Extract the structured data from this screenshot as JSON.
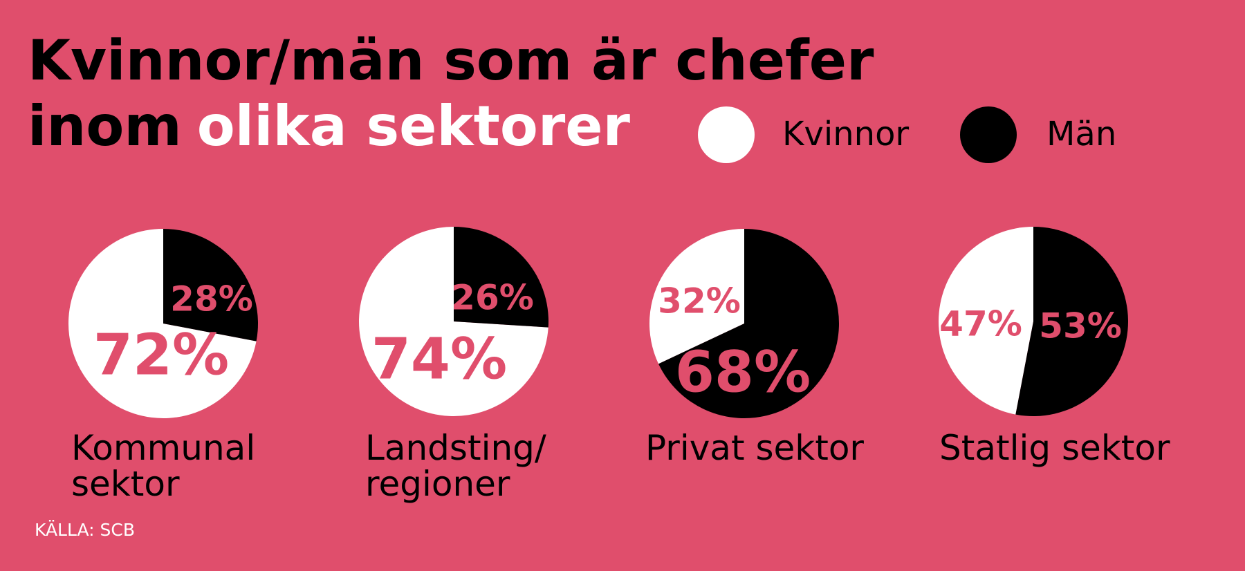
{
  "title": {
    "line1": "Kvinnor/män som är chefer",
    "line2_dark": "inom",
    "line2_light": "olika sektorer"
  },
  "source": "KÄLLA: SCB",
  "chart_data": [
    {
      "type": "pie",
      "label": "Kommunal sektor",
      "categories": [
        "Kvinnor",
        "Män"
      ],
      "values": [
        72,
        28
      ],
      "value_labels": [
        "72%",
        "28%"
      ],
      "colors": [
        "#ffffff",
        "#000000"
      ]
    },
    {
      "type": "pie",
      "label": "Landsting/ regioner",
      "categories": [
        "Kvinnor",
        "Män"
      ],
      "values": [
        74,
        26
      ],
      "value_labels": [
        "74%",
        "26%"
      ],
      "colors": [
        "#ffffff",
        "#000000"
      ]
    },
    {
      "type": "pie",
      "label": "Privat sektor",
      "categories": [
        "Kvinnor",
        "Män"
      ],
      "values": [
        32,
        68
      ],
      "value_labels": [
        "32%",
        "68%"
      ],
      "colors": [
        "#ffffff",
        "#000000"
      ]
    },
    {
      "type": "pie",
      "label": "Statlig sektor",
      "categories": [
        "Kvinnor",
        "Män"
      ],
      "values": [
        47,
        53
      ],
      "value_labels": [
        "47%",
        "53%"
      ],
      "colors": [
        "#ffffff",
        "#000000"
      ]
    }
  ]
}
